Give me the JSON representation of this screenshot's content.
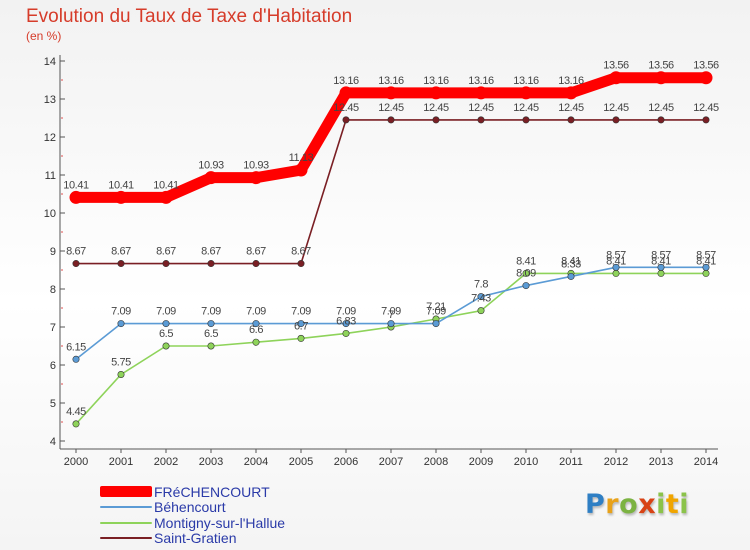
{
  "title": "Evolution du Taux de Taxe d'Habitation",
  "subtitle": "(en %)",
  "logo": {
    "text": "Proxiti",
    "letters": [
      "P",
      "r",
      "o",
      "x",
      "i",
      "t",
      "i"
    ]
  },
  "chart_data": {
    "type": "line",
    "title": "Evolution du Taux de Taxe d'Habitation",
    "ylabel": "(en %)",
    "xlabel": "",
    "ylim": [
      4,
      14
    ],
    "yticks": [
      "4",
      "5",
      "6",
      "7",
      "8",
      "9",
      "10",
      "11",
      "12",
      "13",
      "14"
    ],
    "categories": [
      "2000",
      "2001",
      "2002",
      "2003",
      "2004",
      "2005",
      "2006",
      "2007",
      "2008",
      "2009",
      "2010",
      "2011",
      "2012",
      "2013",
      "2014"
    ],
    "grid": false,
    "legend_position": "bottom-left",
    "series": [
      {
        "name": "FRéCHENCOURT",
        "color": "#ff0000",
        "values": [
          10.41,
          10.41,
          10.41,
          10.93,
          10.93,
          11.13,
          13.16,
          13.16,
          13.16,
          13.16,
          13.16,
          13.16,
          13.56,
          13.56,
          13.56
        ],
        "labels": [
          "10.41",
          "10.41",
          "10.41",
          "10.93",
          "10.93",
          "11.13",
          "13.16",
          "13.16",
          "13.16",
          "13.16",
          "13.16",
          "13.16",
          "13.56",
          "13.56",
          "13.56"
        ]
      },
      {
        "name": "Béhencourt",
        "color": "#5b9bd5",
        "values": [
          6.15,
          7.09,
          7.09,
          7.09,
          7.09,
          7.09,
          7.09,
          7.09,
          7.09,
          7.8,
          8.09,
          8.33,
          8.57,
          8.57,
          8.57
        ],
        "labels": [
          "6.15",
          "7.09",
          "7.09",
          "7.09",
          "7.09",
          "7.09",
          "7.09",
          "7.09",
          "7.09",
          "7.8",
          "8.09",
          "8.33",
          "8.57",
          "8.57",
          "8.57"
        ]
      },
      {
        "name": "Montigny-sur-l'Hallue",
        "color": "#8ed35a",
        "values": [
          4.45,
          5.75,
          6.5,
          6.5,
          6.6,
          6.7,
          6.83,
          7.0,
          7.21,
          7.43,
          8.41,
          8.41,
          8.41,
          8.41,
          8.41
        ],
        "labels": [
          "4.45",
          "5.75",
          "6.5",
          "6.5",
          "6.6",
          "6.7",
          "6.83",
          "7",
          "7.21",
          "7.43",
          "8.41",
          "8.41",
          "8.41",
          "8.41",
          "8.41"
        ]
      },
      {
        "name": "Saint-Gratien",
        "color": "#7a1f24",
        "values": [
          8.67,
          8.67,
          8.67,
          8.67,
          8.67,
          8.67,
          12.45,
          12.45,
          12.45,
          12.45,
          12.45,
          12.45,
          12.45,
          12.45,
          12.45
        ],
        "labels": [
          "8.67",
          "8.67",
          "8.67",
          "8.67",
          "8.67",
          "8.67",
          "12.45",
          "12.45",
          "12.45",
          "12.45",
          "12.45",
          "12.45",
          "12.45",
          "12.45",
          "12.45"
        ]
      }
    ]
  }
}
